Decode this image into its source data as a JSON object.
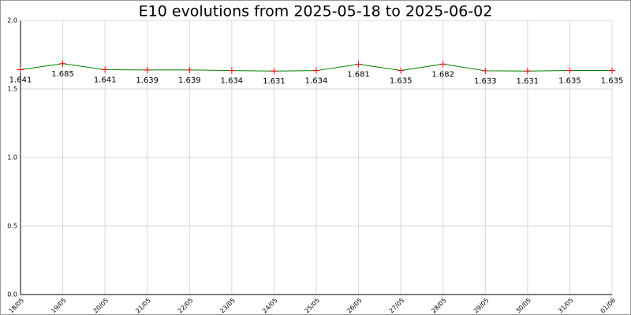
{
  "chart_data": {
    "type": "line",
    "title": "E10 evolutions from 2025-05-18 to 2025-06-02",
    "categories": [
      "18/05",
      "19/05",
      "20/05",
      "21/05",
      "22/05",
      "23/05",
      "24/05",
      "25/05",
      "26/05",
      "27/05",
      "28/05",
      "29/05",
      "30/05",
      "31/05",
      "01/06"
    ],
    "series": [
      {
        "name": "E10",
        "color": "#008000",
        "marker_color": "#ff0000",
        "values": [
          1.641,
          1.685,
          1.641,
          1.639,
          1.639,
          1.634,
          1.631,
          1.634,
          1.681,
          1.635,
          1.682,
          1.633,
          1.631,
          1.635,
          1.635
        ]
      }
    ],
    "ylim": [
      0,
      2
    ],
    "yticks": [
      {
        "value": 0,
        "label": "0.0"
      },
      {
        "value": 0.5,
        "label": "0.5"
      },
      {
        "value": 1,
        "label": "1.0"
      },
      {
        "value": 1.5,
        "label": "1.5"
      },
      {
        "value": 2,
        "label": "2.0"
      }
    ],
    "grid": true
  }
}
